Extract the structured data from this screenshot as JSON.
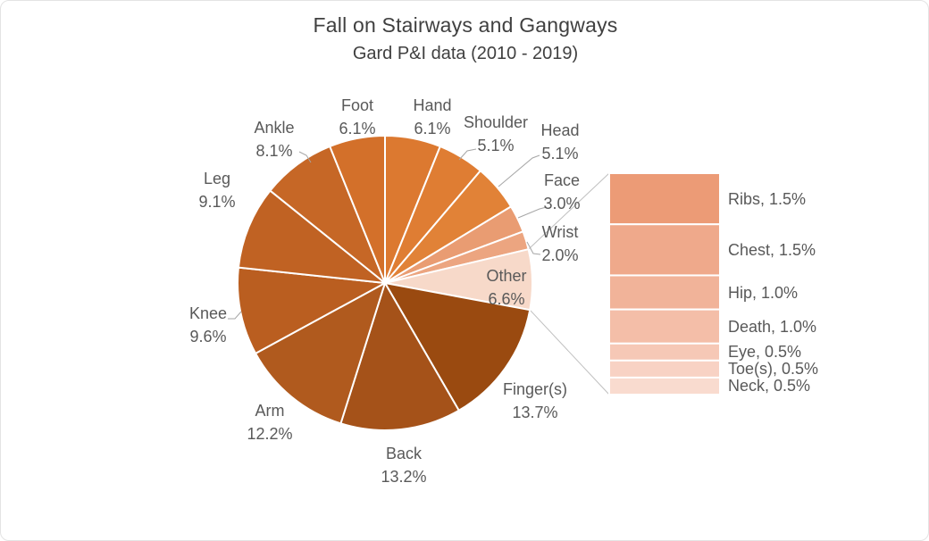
{
  "chart_data": {
    "type": "pie",
    "variant": "pie-of-pie",
    "title": "Fall on Stairways and Gangways",
    "subtitle": "Gard P&I data (2010 - 2019)",
    "legend_position": "none",
    "grid": false,
    "pie_series": [
      {
        "name": "Hand",
        "value": 6.1,
        "color": "#DC7930"
      },
      {
        "name": "Shoulder",
        "value": 5.1,
        "color": "#DF7D33"
      },
      {
        "name": "Head",
        "value": 5.1,
        "color": "#E18237"
      },
      {
        "name": "Face",
        "value": 3.0,
        "color": "#E99C72"
      },
      {
        "name": "Wrist",
        "value": 2.0,
        "color": "#ECA580"
      },
      {
        "name": "Other",
        "value": 6.6,
        "color": "#F7D9C9"
      },
      {
        "name": "Finger(s)",
        "value": 13.7,
        "color": "#9A4A10"
      },
      {
        "name": "Back",
        "value": 13.2,
        "color": "#A55219"
      },
      {
        "name": "Arm",
        "value": 12.2,
        "color": "#B05A1E"
      },
      {
        "name": "Knee",
        "value": 9.6,
        "color": "#BA5E20"
      },
      {
        "name": "Leg",
        "value": 9.1,
        "color": "#C06223"
      },
      {
        "name": "Ankle",
        "value": 8.1,
        "color": "#C66726"
      },
      {
        "name": "Foot",
        "value": 6.1,
        "color": "#D3702A"
      }
    ],
    "bar_series": [
      {
        "name": "Ribs",
        "value": 1.5,
        "color": "#EC9B76"
      },
      {
        "name": "Chest",
        "value": 1.5,
        "color": "#EFA98B"
      },
      {
        "name": "Hip",
        "value": 1.0,
        "color": "#F1B399"
      },
      {
        "name": "Death",
        "value": 1.0,
        "color": "#F4BEA8"
      },
      {
        "name": "Eye",
        "value": 0.5,
        "color": "#F6C8B6"
      },
      {
        "name": "Toe(s)",
        "value": 0.5,
        "color": "#F8D2C4"
      },
      {
        "name": "Neck",
        "value": 0.5,
        "color": "#F9DBCF"
      }
    ],
    "label_color": "#595959",
    "title_color": "#404040",
    "leader_line_color": "#A6A6A6",
    "series_line_color": "#BFBFBF",
    "slice_border_color": "#FFFFFF"
  }
}
